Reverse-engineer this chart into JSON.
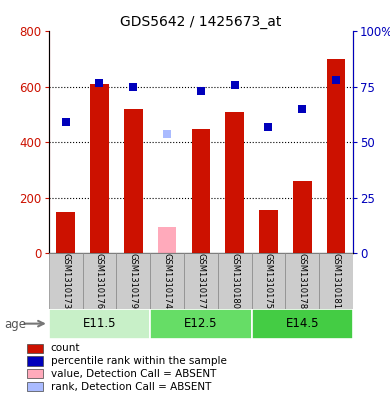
{
  "title": "GDS5642 / 1425673_at",
  "samples": [
    "GSM1310173",
    "GSM1310176",
    "GSM1310179",
    "GSM1310174",
    "GSM1310177",
    "GSM1310180",
    "GSM1310175",
    "GSM1310178",
    "GSM1310181"
  ],
  "counts": [
    150,
    610,
    520,
    null,
    450,
    510,
    155,
    260,
    700
  ],
  "absent_value": [
    null,
    null,
    null,
    95,
    null,
    null,
    null,
    null,
    null
  ],
  "percentile_ranks": [
    59,
    77,
    75,
    null,
    73,
    76,
    57,
    65,
    78
  ],
  "absent_rank": [
    null,
    null,
    null,
    54,
    null,
    null,
    null,
    null,
    null
  ],
  "groups": [
    {
      "label": "E11.5",
      "start": 0,
      "end": 3
    },
    {
      "label": "E12.5",
      "start": 3,
      "end": 6
    },
    {
      "label": "E14.5",
      "start": 6,
      "end": 9
    }
  ],
  "group_colors": [
    "#C8F0C8",
    "#66DD66",
    "#44CC44"
  ],
  "ylim_left": [
    0,
    800
  ],
  "ylim_right": [
    0,
    100
  ],
  "yticks_left": [
    0,
    200,
    400,
    600,
    800
  ],
  "yticks_right": [
    0,
    25,
    50,
    75,
    100
  ],
  "ytick_labels_right": [
    "0",
    "25",
    "50",
    "75",
    "100%"
  ],
  "bar_color": "#CC1100",
  "absent_bar_color": "#FFAABB",
  "dot_color": "#0000BB",
  "absent_dot_color": "#AABBFF",
  "bar_width": 0.55,
  "legend_items": [
    {
      "label": "count",
      "color": "#CC1100"
    },
    {
      "label": "percentile rank within the sample",
      "color": "#0000BB"
    },
    {
      "label": "value, Detection Call = ABSENT",
      "color": "#FFAABB"
    },
    {
      "label": "rank, Detection Call = ABSENT",
      "color": "#AABBFF"
    }
  ],
  "age_label": "age",
  "sample_bg_color": "#CCCCCC",
  "sample_border_color": "#888888"
}
